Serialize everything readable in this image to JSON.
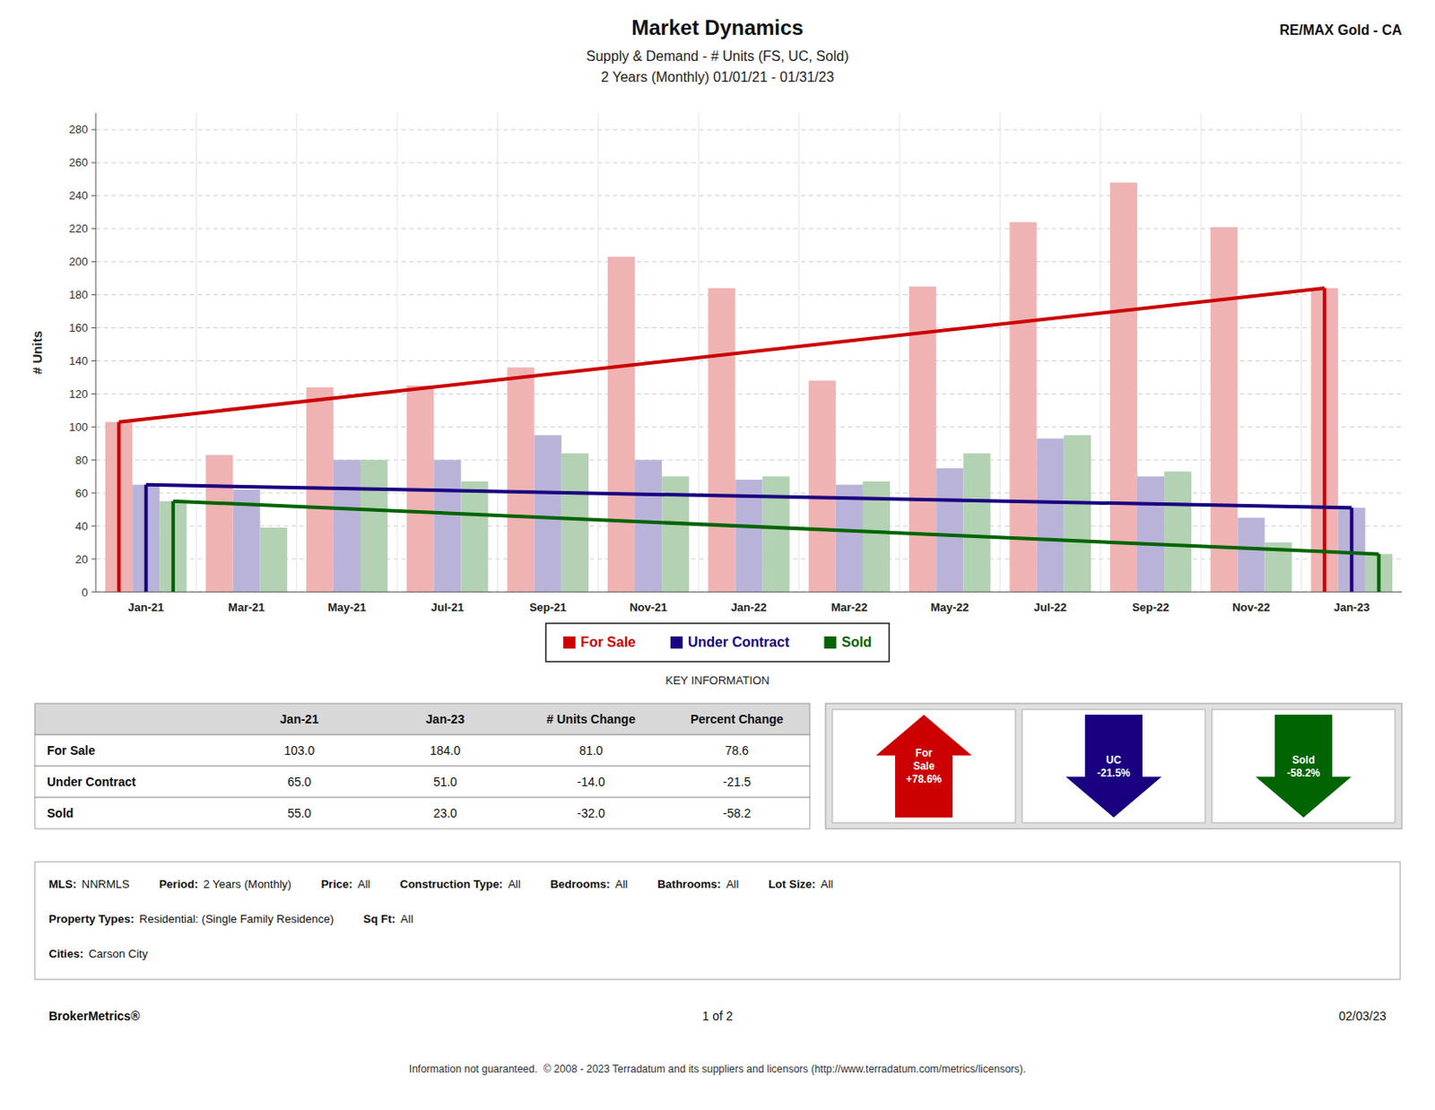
{
  "chart_data": {
    "type": "bar",
    "title": "Market Dynamics",
    "subtitles": [
      "Supply & Demand - # Units (FS, UC, Sold)",
      "2 Years (Monthly) 01/01/21 - 01/31/23"
    ],
    "brand": "RE/MAX Gold - CA",
    "categories": [
      "Jan-21",
      "Mar-21",
      "May-21",
      "Jul-21",
      "Sep-21",
      "Nov-21",
      "Jan-22",
      "Mar-22",
      "May-22",
      "Jul-22",
      "Sep-22",
      "Nov-22",
      "Jan-23"
    ],
    "series": [
      {
        "name": "For Sale",
        "color": "#CC0000",
        "values": [
          103,
          83,
          124,
          125,
          136,
          203,
          184,
          128,
          185,
          224,
          248,
          221,
          184
        ],
        "trend": [
          103,
          184
        ]
      },
      {
        "name": "Under Contract",
        "color": "#1a0080",
        "values": [
          65,
          62,
          80,
          80,
          95,
          80,
          68,
          65,
          75,
          93,
          70,
          45,
          51
        ],
        "trend": [
          65,
          51
        ]
      },
      {
        "name": "Sold",
        "color": "#006400",
        "values": [
          55,
          39,
          80,
          67,
          84,
          70,
          70,
          67,
          84,
          95,
          73,
          30,
          23
        ],
        "trend": [
          55,
          23
        ]
      }
    ],
    "ylabel": "# Units",
    "ylim": [
      0,
      290
    ],
    "yticks": [
      0,
      20,
      40,
      60,
      80,
      100,
      120,
      140,
      160,
      180,
      200,
      220,
      240,
      260,
      280
    ],
    "grid": true,
    "legend": "bottom",
    "legend_caption": "KEY INFORMATION",
    "table": {
      "columns": [
        "Jan-21",
        "Jan-23",
        "# Units Change",
        "Percent Change"
      ],
      "rows": [
        {
          "label": "For Sale",
          "values": [
            "103.0",
            "184.0",
            "81.0",
            "78.6"
          ]
        },
        {
          "label": "Under Contract",
          "values": [
            "65.0",
            "51.0",
            "-14.0",
            "-21.5"
          ]
        },
        {
          "label": "Sold",
          "values": [
            "55.0",
            "23.0",
            "-32.0",
            "-58.2"
          ]
        }
      ]
    },
    "arrows": [
      {
        "label": "For\nSale\n+78.6%",
        "color": "#CC0000",
        "up": true
      },
      {
        "label": "UC\n-21.5%",
        "color": "#1a0080",
        "up": false
      },
      {
        "label": "Sold\n-58.2%",
        "color": "#006400",
        "up": false
      }
    ],
    "info": [
      [
        {
          "label": "MLS:",
          "value": "NNRMLS"
        },
        {
          "label": "Period:",
          "value": "2 Years (Monthly)"
        },
        {
          "label": "Price:",
          "value": "All"
        },
        {
          "label": "Construction Type:",
          "value": "All"
        },
        {
          "label": "Bedrooms:",
          "value": "All"
        },
        {
          "label": "Bathrooms:",
          "value": "All"
        },
        {
          "label": "Lot Size:",
          "value": "All"
        }
      ],
      [
        {
          "label": "Property Types:",
          "value": "Residential: (Single Family Residence)"
        },
        {
          "label": "Sq Ft:",
          "value": "All"
        }
      ],
      [
        {
          "label": "Cities:",
          "value": "Carson City"
        }
      ]
    ],
    "footer": {
      "left": "BrokerMetrics®",
      "center": "1 of 2",
      "right": "02/03/23"
    },
    "copyright": "Information not guaranteed.  © 2008 - 2023 Terradatum and its suppliers and licensors (http://www.terradatum.com/metrics/licensors)."
  }
}
